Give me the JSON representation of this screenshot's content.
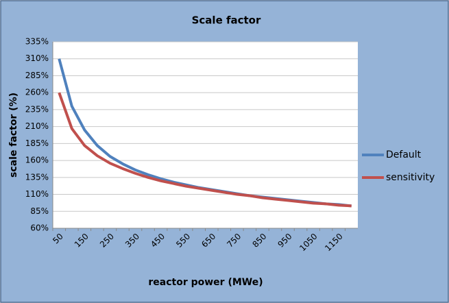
{
  "chart_data": {
    "type": "line",
    "title": "Scale factor",
    "x_label": "reactor power (MWe)",
    "y_label": "scale factor (%)",
    "categories": [
      "50",
      null,
      "150",
      null,
      "250",
      null,
      "350",
      null,
      "450",
      null,
      "550",
      null,
      "650",
      null,
      "750",
      null,
      "850",
      null,
      "950",
      null,
      "1050",
      null,
      "1150",
      null
    ],
    "series": [
      {
        "name": "Default",
        "color": "#4f81bd",
        "values": [
          310,
          240,
          205,
          182,
          166,
          155,
          146,
          139,
          133,
          128,
          124,
          120,
          117,
          114,
          111,
          108,
          106,
          104,
          102,
          100,
          98,
          96,
          95,
          93
        ]
      },
      {
        "name": "sensitivity",
        "color": "#c0504d",
        "values": [
          260,
          207,
          182,
          167,
          156,
          148,
          141,
          135,
          130,
          126,
          122,
          119,
          116,
          113,
          110,
          108,
          105,
          103,
          101,
          99,
          97,
          96,
          94,
          93
        ]
      }
    ],
    "ylim": [
      60,
      335
    ],
    "yticks": [
      {
        "value": 60,
        "label": "60%"
      },
      {
        "value": 85,
        "label": "85%"
      },
      {
        "value": 110,
        "label": "110%"
      },
      {
        "value": 135,
        "label": "135%"
      },
      {
        "value": 160,
        "label": "160%"
      },
      {
        "value": 185,
        "label": "185%"
      },
      {
        "value": 210,
        "label": "210%"
      },
      {
        "value": 235,
        "label": "235%"
      },
      {
        "value": 260,
        "label": "260%"
      },
      {
        "value": 285,
        "label": "285%"
      },
      {
        "value": 310,
        "label": "310%"
      },
      {
        "value": 335,
        "label": "335%"
      }
    ],
    "grid": true,
    "legend": "right"
  }
}
